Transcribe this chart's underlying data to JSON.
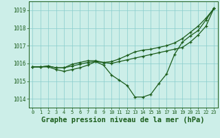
{
  "title": "Graphe pression niveau de la mer (hPa)",
  "xlabel_hours": [
    0,
    1,
    2,
    3,
    4,
    5,
    6,
    7,
    8,
    9,
    10,
    11,
    12,
    13,
    14,
    15,
    16,
    17,
    18,
    19,
    20,
    21,
    22,
    23
  ],
  "ylim": [
    1013.5,
    1019.5
  ],
  "yticks": [
    1014,
    1015,
    1016,
    1017,
    1018,
    1019
  ],
  "background_color": "#cceee8",
  "grid_color": "#88cccc",
  "line_color": "#1a5c1a",
  "title_color": "#1a5c1a",
  "series1": [
    1015.8,
    1015.8,
    1015.8,
    1015.65,
    1015.55,
    1015.65,
    1015.75,
    1015.9,
    1016.1,
    1015.9,
    1015.35,
    1015.05,
    1014.75,
    1014.1,
    1014.1,
    1014.25,
    1014.85,
    1015.4,
    1016.5,
    1017.2,
    1017.55,
    1017.85,
    1018.45,
    1019.1
  ],
  "series2": [
    1015.8,
    1015.8,
    1015.85,
    1015.75,
    1015.75,
    1015.85,
    1015.95,
    1016.05,
    1016.1,
    1016.05,
    1016.0,
    1016.1,
    1016.2,
    1016.3,
    1016.4,
    1016.5,
    1016.6,
    1016.7,
    1016.8,
    1016.9,
    1017.2,
    1017.6,
    1018.1,
    1019.1
  ],
  "series3": [
    1015.8,
    1015.8,
    1015.85,
    1015.75,
    1015.75,
    1015.95,
    1016.05,
    1016.15,
    1016.15,
    1016.05,
    1016.1,
    1016.25,
    1016.45,
    1016.65,
    1016.75,
    1016.8,
    1016.9,
    1017.0,
    1017.15,
    1017.4,
    1017.75,
    1018.1,
    1018.55,
    1019.1
  ],
  "title_fontsize": 7.5,
  "axis_fontsize": 5.5,
  "xlabel_fontsize": 5.0
}
